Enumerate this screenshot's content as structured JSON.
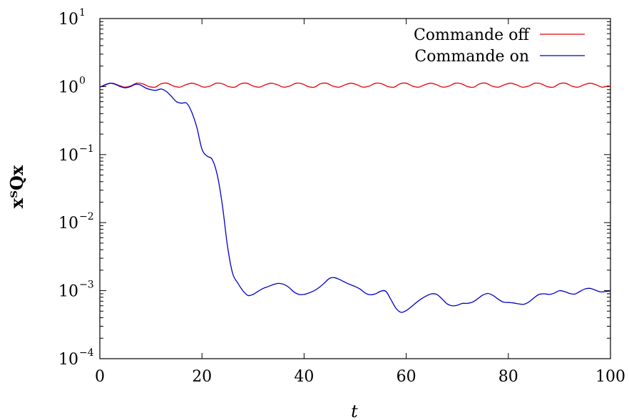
{
  "chart_data": {
    "type": "line",
    "xlabel": "t",
    "ylabel": "xᵀQx",
    "xlim": [
      0,
      100
    ],
    "ylim": [
      0.0001,
      10
    ],
    "y_scale": "log",
    "grid": false,
    "legend_position": "top-right",
    "x_ticks": [
      "0",
      "20",
      "40",
      "60",
      "80",
      "100"
    ],
    "y_ticks": [
      {
        "base": "10",
        "exp": "−4",
        "value": 0.0001
      },
      {
        "base": "10",
        "exp": "−3",
        "value": 0.001
      },
      {
        "base": "10",
        "exp": "−2",
        "value": 0.01
      },
      {
        "base": "10",
        "exp": "−1",
        "value": 0.1
      },
      {
        "base": "10",
        "exp": "0",
        "value": 1
      },
      {
        "base": "10",
        "exp": "1",
        "value": 10
      }
    ],
    "series": [
      {
        "name": "Commande off",
        "color": "#e8000b",
        "x": [
          0,
          1.2,
          2.4,
          3.6,
          4.8,
          6.0,
          7.2,
          8.4,
          9.6,
          10.8,
          12.0,
          13.2,
          14.4,
          15.6,
          16.8,
          18.0,
          19.2,
          20.4,
          21.6,
          22.8,
          24.0,
          25.2,
          26.4,
          27.6,
          28.8,
          30.0,
          31.2,
          32.4,
          33.6,
          34.8,
          36.0,
          37.2,
          38.4,
          39.6,
          40.8,
          42.0,
          43.2,
          44.4,
          45.6,
          46.8,
          48.0,
          49.2,
          50.4,
          51.6,
          52.8,
          54.0,
          55.2,
          56.4,
          57.6,
          58.8,
          60.0,
          61.2,
          62.4,
          63.6,
          64.8,
          66.0,
          67.2,
          68.4,
          69.6,
          70.8,
          72.0,
          73.2,
          74.4,
          75.6,
          76.8,
          78.0,
          79.2,
          80.4,
          81.6,
          82.8,
          84.0,
          85.2,
          86.4,
          87.6,
          88.8,
          90.0,
          91.2,
          92.4,
          93.6,
          94.8,
          96.0,
          97.2,
          98.4,
          99.6,
          100
        ],
        "y": [
          0.98,
          1.08,
          1.12,
          1.05,
          0.98,
          1.02,
          1.12,
          1.1,
          1.0,
          0.98,
          1.1,
          1.12,
          1.02,
          0.98,
          1.06,
          1.12,
          1.06,
          0.98,
          1.02,
          1.12,
          1.1,
          1.0,
          0.98,
          1.1,
          1.12,
          1.02,
          0.98,
          1.06,
          1.12,
          1.06,
          0.98,
          1.02,
          1.12,
          1.1,
          1.0,
          0.98,
          1.1,
          1.12,
          1.02,
          0.98,
          1.06,
          1.12,
          1.06,
          0.98,
          1.02,
          1.12,
          1.1,
          1.0,
          0.98,
          1.1,
          1.12,
          1.02,
          0.98,
          1.06,
          1.12,
          1.06,
          0.98,
          1.02,
          1.12,
          1.1,
          1.0,
          0.98,
          1.1,
          1.12,
          1.02,
          0.98,
          1.06,
          1.12,
          1.06,
          0.98,
          1.02,
          1.12,
          1.1,
          1.0,
          0.98,
          1.1,
          1.12,
          1.02,
          0.98,
          1.06,
          1.12,
          1.06,
          0.98,
          1.02,
          0.98
        ]
      },
      {
        "name": "Commande on",
        "color": "#0000cc",
        "x": [
          0,
          1.0,
          2.0,
          3.0,
          4.0,
          5.0,
          6.0,
          7.0,
          8.0,
          9.0,
          10.0,
          11.0,
          12.0,
          13.0,
          14.0,
          15.0,
          16.0,
          17.0,
          18.0,
          19.0,
          20.0,
          21.0,
          22.0,
          23.0,
          24.0,
          25.0,
          26.0,
          27.0,
          28.0,
          29.0,
          30.0,
          31.0,
          32.0,
          33.0,
          34.0,
          35.0,
          36.0,
          37.0,
          38.0,
          39.0,
          40.0,
          41.0,
          42.0,
          43.0,
          44.0,
          45.0,
          46.0,
          47.0,
          48.0,
          49.0,
          50.0,
          51.0,
          52.0,
          53.0,
          54.0,
          55.0,
          56.0,
          57.0,
          58.0,
          59.0,
          60.0,
          61.0,
          62.0,
          63.0,
          64.0,
          65.0,
          66.0,
          67.0,
          68.0,
          69.0,
          70.0,
          71.0,
          72.0,
          73.0,
          74.0,
          75.0,
          76.0,
          77.0,
          78.0,
          79.0,
          80.0,
          81.0,
          82.0,
          83.0,
          84.0,
          85.0,
          86.0,
          87.0,
          88.0,
          89.0,
          90.0,
          91.0,
          92.0,
          93.0,
          94.0,
          95.0,
          96.0,
          97.0,
          98.0,
          99.0,
          100
        ],
        "y": [
          0.98,
          1.05,
          1.12,
          1.08,
          1.0,
          0.96,
          1.0,
          1.08,
          1.05,
          0.95,
          0.9,
          0.88,
          0.92,
          0.85,
          0.72,
          0.6,
          0.57,
          0.57,
          0.42,
          0.25,
          0.12,
          0.095,
          0.085,
          0.05,
          0.018,
          0.0045,
          0.0018,
          0.0013,
          0.001,
          0.00085,
          0.00088,
          0.00098,
          0.00108,
          0.00115,
          0.00123,
          0.00128,
          0.00124,
          0.00112,
          0.00096,
          0.00088,
          0.00088,
          0.00093,
          0.001,
          0.00112,
          0.0013,
          0.00152,
          0.00155,
          0.00145,
          0.00133,
          0.00123,
          0.00115,
          0.00105,
          0.00092,
          0.00087,
          0.0009,
          0.00098,
          0.00098,
          0.00074,
          0.00055,
          0.00048,
          0.00051,
          0.00058,
          0.00067,
          0.00076,
          0.00084,
          0.0009,
          0.00088,
          0.00076,
          0.00064,
          0.0006,
          0.00061,
          0.00065,
          0.00065,
          0.00068,
          0.00076,
          0.00086,
          0.00091,
          0.00085,
          0.00075,
          0.00068,
          0.00067,
          0.00066,
          0.00064,
          0.00063,
          0.00068,
          0.00078,
          0.00088,
          0.0009,
          0.00088,
          0.00092,
          0.001,
          0.00097,
          0.00091,
          0.00089,
          0.00097,
          0.00106,
          0.00108,
          0.00102,
          0.00096,
          0.00097,
          0.00099
        ]
      }
    ]
  }
}
